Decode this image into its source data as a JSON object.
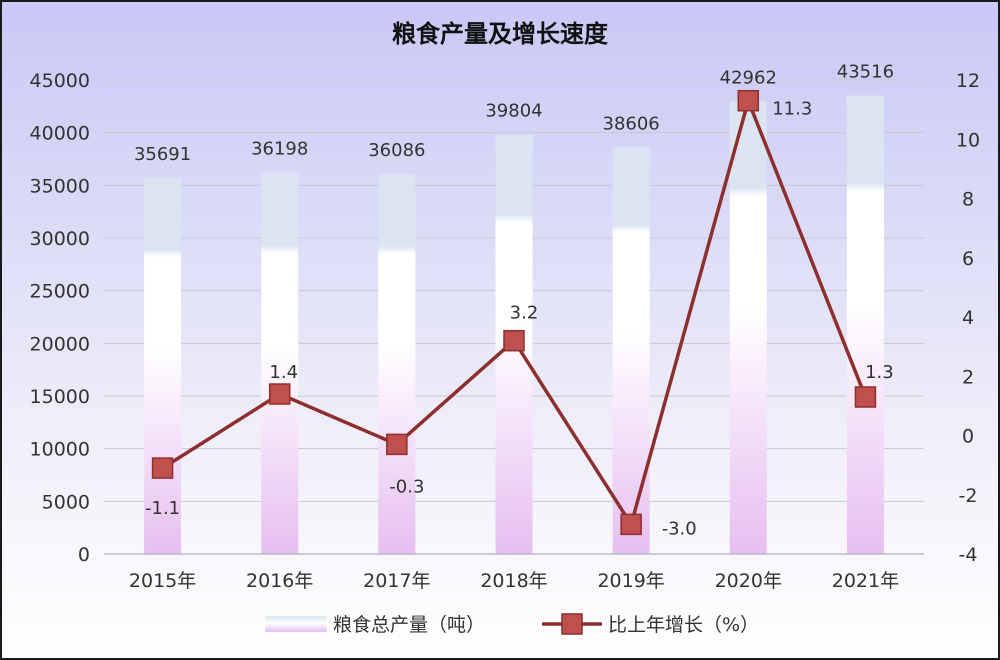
{
  "chart_data": {
    "type": "bar+line",
    "title": "粮食产量及增长速度",
    "categories": [
      "2015年",
      "2016年",
      "2017年",
      "2018年",
      "2019年",
      "2020年",
      "2021年"
    ],
    "series": [
      {
        "name": "粮食总产量（吨）",
        "type": "bar",
        "axis": "left",
        "values": [
          35691,
          36198,
          36086,
          39804,
          38606,
          42962,
          43516
        ],
        "labels": [
          "35691",
          "36198",
          "36086",
          "39804",
          "38606",
          "42962",
          "43516"
        ]
      },
      {
        "name": "比上年增长（%）",
        "type": "line",
        "axis": "right",
        "values": [
          -1.1,
          1.4,
          -0.3,
          3.2,
          -3.0,
          11.3,
          1.3
        ],
        "labels": [
          "-1.1",
          "1.4",
          "-0.3",
          "3.2",
          "-3.0",
          "11.3",
          "1.3"
        ]
      }
    ],
    "y_left": {
      "range": [
        0,
        45000
      ],
      "ticks": [
        "0",
        "5000",
        "10000",
        "15000",
        "20000",
        "25000",
        "30000",
        "35000",
        "40000",
        "45000"
      ]
    },
    "y_right": {
      "range": [
        -4,
        12
      ],
      "ticks": [
        "-4",
        "-2",
        "0",
        "2",
        "4",
        "6",
        "8",
        "10",
        "12"
      ]
    },
    "grid": true,
    "legend_position": "bottom",
    "colors": {
      "bar_top": "#dce4f2",
      "bar_mid": "#ffffff",
      "bar_bottom": "#e6bff0",
      "line": "#8e2f2f",
      "marker": "#c0504d"
    }
  }
}
